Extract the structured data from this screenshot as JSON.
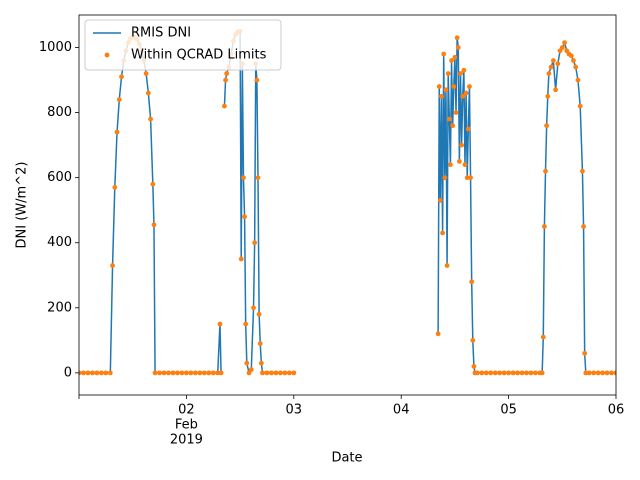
{
  "chart_data": {
    "type": "line",
    "xlabel": "Date",
    "ylabel": "DNI (W/m^2)",
    "x": [
      "2019-02-01T00:00",
      "2019-02-01T01:00",
      "2019-02-01T02:00",
      "2019-02-01T03:00",
      "2019-02-01T04:00",
      "2019-02-01T05:00",
      "2019-02-01T06:00",
      "2019-02-01T07:00",
      "2019-02-01T07:30",
      "2019-02-01T08:00",
      "2019-02-01T08:30",
      "2019-02-01T09:00",
      "2019-02-01T09:30",
      "2019-02-01T10:00",
      "2019-02-01T10:30",
      "2019-02-01T11:00",
      "2019-02-01T11:30",
      "2019-02-01T12:00",
      "2019-02-01T12:30",
      "2019-02-01T13:00",
      "2019-02-01T13:30",
      "2019-02-01T14:00",
      "2019-02-01T14:30",
      "2019-02-01T15:00",
      "2019-02-01T15:30",
      "2019-02-01T16:00",
      "2019-02-01T16:30",
      "2019-02-01T16:45",
      "2019-02-01T17:00",
      "2019-02-01T18:00",
      "2019-02-01T19:00",
      "2019-02-01T20:00",
      "2019-02-01T21:00",
      "2019-02-01T22:00",
      "2019-02-01T23:00",
      "2019-02-02T00:00",
      "2019-02-02T01:00",
      "2019-02-02T02:00",
      "2019-02-02T03:00",
      "2019-02-02T04:00",
      "2019-02-02T05:00",
      "2019-02-02T06:00",
      "2019-02-02T07:00",
      "2019-02-02T07:30",
      "2019-02-02T07:45",
      "2019-02-02T08:00",
      "2019-02-02T08:30",
      "2019-02-02T08:45",
      "2019-02-02T09:00",
      "2019-02-02T09:30",
      "2019-02-02T10:00",
      "2019-02-02T10:30",
      "2019-02-02T11:00",
      "2019-02-02T11:30",
      "2019-02-02T12:00",
      "2019-02-02T12:15",
      "2019-02-02T12:30",
      "2019-02-02T12:45",
      "2019-02-02T13:00",
      "2019-02-02T13:15",
      "2019-02-02T13:30",
      "2019-02-02T14:00",
      "2019-02-02T14:30",
      "2019-02-02T15:00",
      "2019-02-02T15:15",
      "2019-02-02T15:30",
      "2019-02-02T15:45",
      "2019-02-02T16:00",
      "2019-02-02T16:15",
      "2019-02-02T16:30",
      "2019-02-02T16:45",
      "2019-02-02T17:00",
      "2019-02-02T18:00",
      "2019-02-02T19:00",
      "2019-02-02T20:00",
      "2019-02-02T21:00",
      "2019-02-02T22:00",
      "2019-02-02T23:00",
      "2019-02-03T00:00",
      "2019-02-03T12:00",
      "2019-02-04T08:15",
      "2019-02-04T08:30",
      "2019-02-04T08:45",
      "2019-02-04T09:00",
      "2019-02-04T09:15",
      "2019-02-04T09:30",
      "2019-02-04T09:45",
      "2019-02-04T10:00",
      "2019-02-04T10:15",
      "2019-02-04T10:30",
      "2019-02-04T10:45",
      "2019-02-04T11:00",
      "2019-02-04T11:15",
      "2019-02-04T11:30",
      "2019-02-04T11:45",
      "2019-02-04T12:00",
      "2019-02-04T12:15",
      "2019-02-04T12:30",
      "2019-02-04T12:45",
      "2019-02-04T13:00",
      "2019-02-04T13:15",
      "2019-02-04T13:30",
      "2019-02-04T13:45",
      "2019-02-04T14:00",
      "2019-02-04T14:15",
      "2019-02-04T14:30",
      "2019-02-04T14:45",
      "2019-02-04T15:00",
      "2019-02-04T15:15",
      "2019-02-04T15:30",
      "2019-02-04T15:45",
      "2019-02-04T16:00",
      "2019-02-04T16:15",
      "2019-02-04T16:30",
      "2019-02-04T17:00",
      "2019-02-04T18:00",
      "2019-02-04T19:00",
      "2019-02-04T20:00",
      "2019-02-04T21:00",
      "2019-02-04T22:00",
      "2019-02-04T23:00",
      "2019-02-05T00:00",
      "2019-02-05T01:00",
      "2019-02-05T02:00",
      "2019-02-05T03:00",
      "2019-02-05T04:00",
      "2019-02-05T05:00",
      "2019-02-05T06:00",
      "2019-02-05T07:00",
      "2019-02-05T07:30",
      "2019-02-05T07:45",
      "2019-02-05T08:00",
      "2019-02-05T08:15",
      "2019-02-05T08:30",
      "2019-02-05T08:45",
      "2019-02-05T09:00",
      "2019-02-05T09:30",
      "2019-02-05T10:00",
      "2019-02-05T10:30",
      "2019-02-05T11:00",
      "2019-02-05T11:30",
      "2019-02-05T12:00",
      "2019-02-05T12:30",
      "2019-02-05T13:00",
      "2019-02-05T13:30",
      "2019-02-05T14:00",
      "2019-02-05T14:30",
      "2019-02-05T15:00",
      "2019-02-05T15:30",
      "2019-02-05T16:00",
      "2019-02-05T16:30",
      "2019-02-05T16:45",
      "2019-02-05T17:00",
      "2019-02-05T17:15",
      "2019-02-05T18:00",
      "2019-02-05T19:00",
      "2019-02-05T20:00",
      "2019-02-05T21:00",
      "2019-02-05T22:00",
      "2019-02-05T23:00",
      "2019-02-06T00:00"
    ],
    "series": [
      {
        "name": "RMIS DNI",
        "color": "#1f77b4",
        "style": "line",
        "values": [
          0,
          0,
          0,
          0,
          0,
          0,
          0,
          0,
          330,
          570,
          740,
          840,
          910,
          960,
          990,
          1015,
          1028,
          1032,
          1030,
          1025,
          1010,
          990,
          960,
          920,
          860,
          780,
          580,
          455,
          0,
          0,
          0,
          0,
          0,
          0,
          0,
          0,
          0,
          0,
          0,
          0,
          0,
          0,
          0,
          150,
          0,
          null,
          820,
          900,
          920,
          940,
          980,
          1020,
          1040,
          1048,
          1050,
          350,
          950,
          600,
          480,
          150,
          30,
          0,
          10,
          200,
          400,
          950,
          900,
          600,
          180,
          90,
          30,
          0,
          0,
          0,
          0,
          0,
          0,
          0,
          0,
          null,
          120,
          880,
          530,
          850,
          430,
          980,
          600,
          870,
          330,
          920,
          780,
          640,
          960,
          760,
          880,
          970,
          800,
          1030,
          1000,
          650,
          920,
          700,
          850,
          930,
          640,
          860,
          600,
          750,
          880,
          600,
          280,
          100,
          20,
          0,
          0,
          0,
          0,
          0,
          0,
          0,
          0,
          0,
          0,
          0,
          0,
          0,
          0,
          0,
          0,
          0,
          110,
          450,
          620,
          760,
          850,
          920,
          940,
          960,
          870,
          950,
          990,
          1000,
          1015,
          990,
          980,
          975,
          960,
          940,
          900,
          820,
          620,
          450,
          60,
          0,
          0,
          0,
          0,
          0,
          0,
          0,
          0
        ]
      },
      {
        "name": "Within QCRAD Limits",
        "color": "#ff7f0e",
        "style": "scatter",
        "values": [
          0,
          0,
          0,
          0,
          0,
          0,
          0,
          0,
          330,
          570,
          740,
          840,
          910,
          960,
          990,
          1015,
          1028,
          1032,
          1030,
          1025,
          1010,
          990,
          960,
          920,
          860,
          780,
          580,
          455,
          0,
          0,
          0,
          0,
          0,
          0,
          0,
          0,
          0,
          0,
          0,
          0,
          0,
          0,
          0,
          150,
          0,
          null,
          820,
          900,
          920,
          940,
          980,
          1020,
          1040,
          1048,
          1050,
          350,
          950,
          600,
          480,
          150,
          30,
          0,
          10,
          200,
          400,
          950,
          900,
          600,
          180,
          90,
          30,
          0,
          0,
          0,
          0,
          0,
          0,
          0,
          0,
          null,
          120,
          880,
          530,
          850,
          430,
          980,
          600,
          870,
          330,
          920,
          780,
          640,
          960,
          760,
          880,
          970,
          800,
          1030,
          1000,
          650,
          920,
          700,
          850,
          930,
          640,
          860,
          600,
          750,
          880,
          600,
          280,
          100,
          20,
          0,
          0,
          0,
          0,
          0,
          0,
          0,
          0,
          0,
          0,
          0,
          0,
          0,
          0,
          0,
          0,
          0,
          110,
          450,
          620,
          760,
          850,
          920,
          940,
          960,
          870,
          950,
          990,
          1000,
          1015,
          990,
          980,
          975,
          960,
          940,
          900,
          820,
          620,
          450,
          60,
          0,
          0,
          0,
          0,
          0,
          0,
          0,
          0
        ]
      }
    ],
    "xlim": [
      "2019-02-01",
      "2019-02-06"
    ],
    "xticks": [
      {
        "value": "2019-02-01",
        "label": null
      },
      {
        "value": "2019-02-02",
        "label": "02"
      },
      {
        "value": "2019-02-03",
        "label": "03"
      },
      {
        "value": "2019-02-04",
        "label": "04"
      },
      {
        "value": "2019-02-05",
        "label": "05"
      },
      {
        "value": "2019-02-06",
        "label": "06"
      }
    ],
    "xtick_sublabels": [
      "Feb",
      "2019"
    ],
    "ylim": [
      -68,
      1100
    ],
    "yticks": [
      0,
      200,
      400,
      600,
      800,
      1000
    ],
    "grid": false,
    "legend": "upper left"
  }
}
